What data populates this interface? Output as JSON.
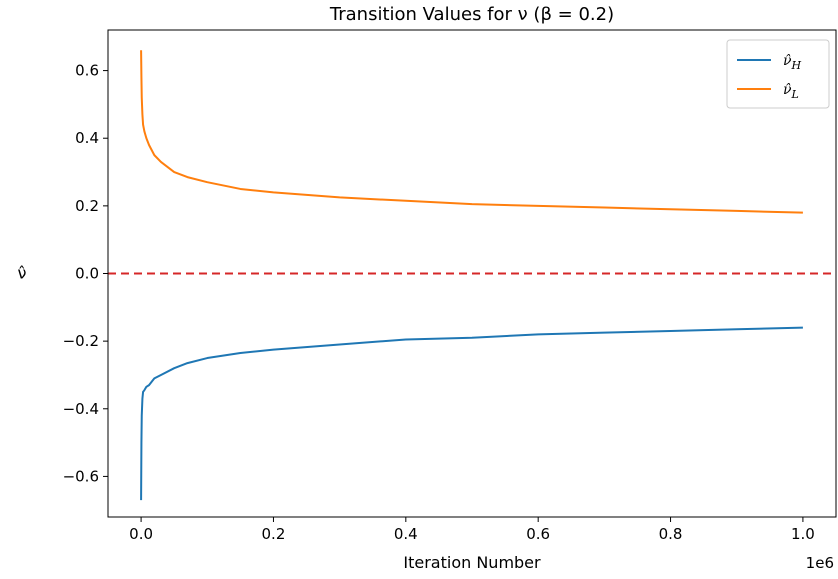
{
  "chart_data": {
    "type": "line",
    "title": "Transition Values for ν (β = 0.2)",
    "xlabel": "Iteration Number",
    "ylabel": "ν̂",
    "x_offset_text": "1e6",
    "xlim": [
      -0.05,
      1.05
    ],
    "ylim": [
      -0.72,
      0.72
    ],
    "x_ticks": [
      0.0,
      0.2,
      0.4,
      0.6,
      0.8,
      1.0
    ],
    "x_tick_labels": [
      "0.0",
      "0.2",
      "0.4",
      "0.6",
      "0.8",
      "1.0"
    ],
    "y_ticks": [
      -0.6,
      -0.4,
      -0.2,
      0.0,
      0.2,
      0.4,
      0.6
    ],
    "y_tick_labels": [
      "−0.6",
      "−0.4",
      "−0.2",
      "0.0",
      "0.2",
      "0.4",
      "0.6"
    ],
    "grid": false,
    "legend_position": "top-right",
    "reference_line": {
      "y": 0.0,
      "color": "#d62728",
      "style": "dashed"
    },
    "series": [
      {
        "name": "ν̂H",
        "legend_base": "ν̂",
        "legend_sub": "H",
        "color": "#1f77b4",
        "x": [
          0.0,
          0.0005,
          0.001,
          0.002,
          0.003,
          0.005,
          0.008,
          0.012,
          0.02,
          0.03,
          0.05,
          0.07,
          0.1,
          0.15,
          0.2,
          0.3,
          0.4,
          0.5,
          0.6,
          0.7,
          0.8,
          0.9,
          1.0
        ],
        "y": [
          -0.67,
          -0.5,
          -0.42,
          -0.37,
          -0.35,
          -0.345,
          -0.335,
          -0.33,
          -0.31,
          -0.3,
          -0.28,
          -0.265,
          -0.25,
          -0.235,
          -0.225,
          -0.21,
          -0.195,
          -0.19,
          -0.18,
          -0.175,
          -0.17,
          -0.165,
          -0.16
        ]
      },
      {
        "name": "ν̂L",
        "legend_base": "ν̂",
        "legend_sub": "L",
        "color": "#ff7f0e",
        "x": [
          0.0,
          0.0005,
          0.001,
          0.002,
          0.003,
          0.005,
          0.008,
          0.012,
          0.02,
          0.03,
          0.05,
          0.07,
          0.1,
          0.15,
          0.2,
          0.3,
          0.4,
          0.5,
          0.6,
          0.7,
          0.8,
          0.9,
          1.0
        ],
        "y": [
          0.66,
          0.58,
          0.52,
          0.47,
          0.44,
          0.42,
          0.4,
          0.38,
          0.35,
          0.33,
          0.3,
          0.285,
          0.27,
          0.25,
          0.24,
          0.225,
          0.215,
          0.205,
          0.2,
          0.195,
          0.19,
          0.185,
          0.18
        ]
      }
    ]
  }
}
